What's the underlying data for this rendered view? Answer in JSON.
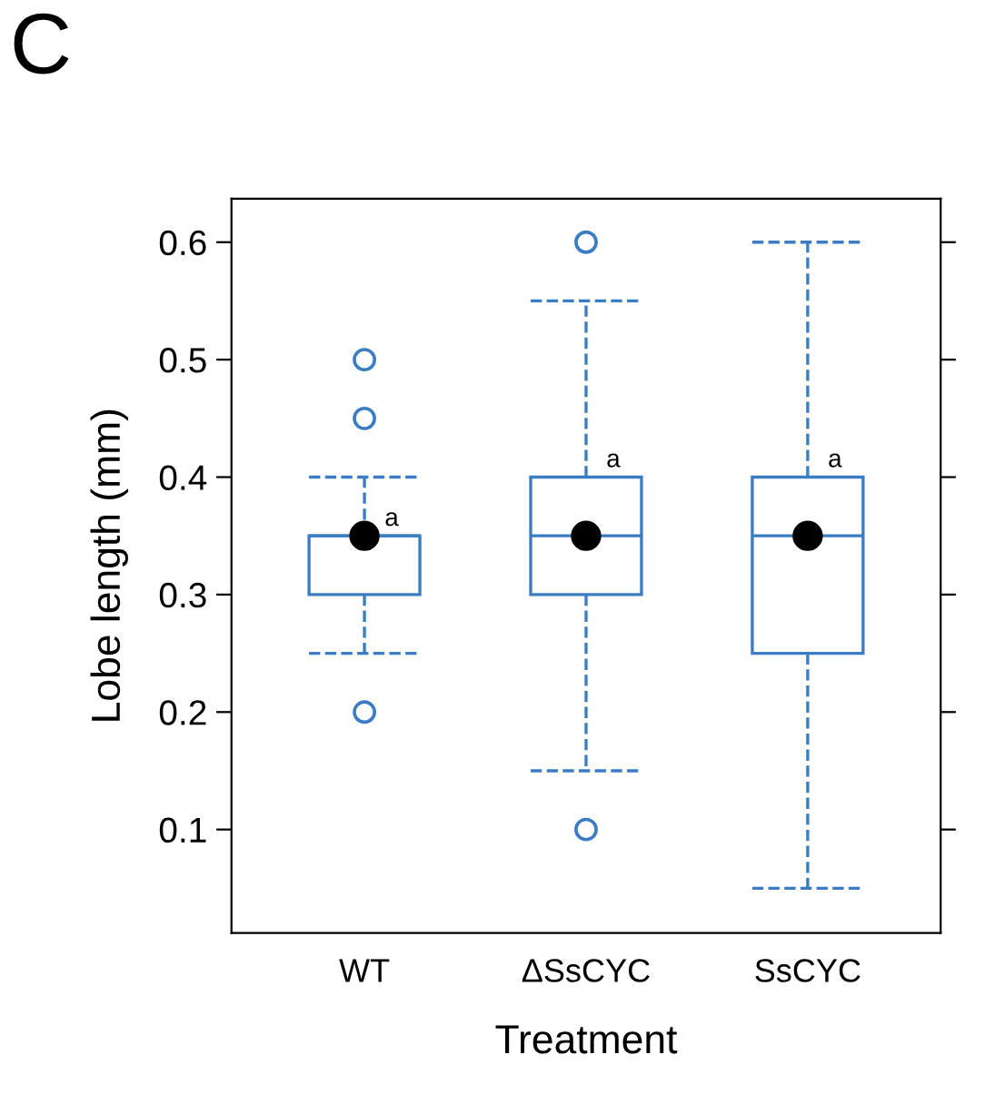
{
  "chart_data": {
    "type": "box",
    "title": "C",
    "xlabel": "Treatment",
    "ylabel": "Lobe length (mm)",
    "categories": [
      "WT",
      "ΔSsCYC",
      "SsCYC"
    ],
    "boxes": [
      {
        "low": 0.25,
        "q1": 0.3,
        "median": 0.35,
        "q3": 0.35,
        "high": 0.4,
        "mean": 0.35,
        "outliers": [
          0.2,
          0.45,
          0.5
        ]
      },
      {
        "low": 0.15,
        "q1": 0.3,
        "median": 0.35,
        "q3": 0.4,
        "high": 0.55,
        "mean": 0.35,
        "outliers": [
          0.1,
          0.6
        ]
      },
      {
        "low": 0.05,
        "q1": 0.25,
        "median": 0.35,
        "q3": 0.4,
        "high": 0.6,
        "mean": 0.35
      }
    ],
    "color": "#3a7dc4",
    "ylim": [
      0.012,
      0.637
    ],
    "yticks": [
      0.1,
      0.2,
      0.3,
      0.4,
      0.5,
      0.6
    ],
    "grid": false,
    "line_style": "dashed",
    "annotations": [
      {
        "text": "a",
        "x": "WT",
        "y": 0.35
      },
      {
        "text": "a",
        "x": "ΔSsCYC",
        "y": 0.4
      },
      {
        "text": "a",
        "x": "SsCYC",
        "y": 0.4
      }
    ]
  }
}
